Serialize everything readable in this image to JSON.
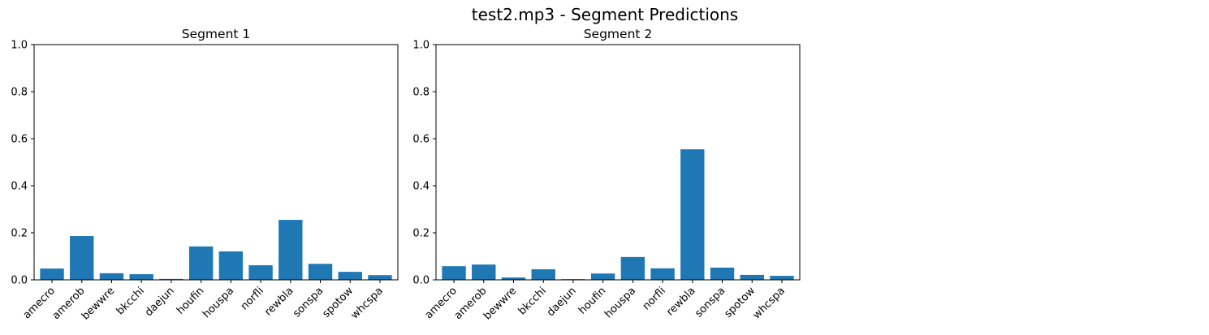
{
  "figure": {
    "title": "test2.mp3 - Segment Predictions",
    "bar_color": "#1f77b4"
  },
  "chart_data": [
    {
      "type": "bar",
      "title": "Segment 1",
      "xlabel": "",
      "ylabel": "",
      "categories": [
        "amecro",
        "amerob",
        "bewwre",
        "bkcchi",
        "daejun",
        "houfin",
        "houspa",
        "norfli",
        "rewbla",
        "sonspa",
        "spotow",
        "whcspa"
      ],
      "values": [
        0.048,
        0.186,
        0.028,
        0.024,
        0.004,
        0.142,
        0.121,
        0.062,
        0.255,
        0.068,
        0.034,
        0.02
      ],
      "ylim": [
        0,
        1.0
      ],
      "yticks": [
        "0.0",
        "0.2",
        "0.4",
        "0.6",
        "0.8",
        "1.0"
      ],
      "grid": false,
      "legend": "none"
    },
    {
      "type": "bar",
      "title": "Segment 2",
      "xlabel": "",
      "ylabel": "",
      "categories": [
        "amecro",
        "amerob",
        "bewwre",
        "bkcchi",
        "daejun",
        "houfin",
        "houspa",
        "norfli",
        "rewbla",
        "sonspa",
        "spotow",
        "whcspa"
      ],
      "values": [
        0.058,
        0.065,
        0.01,
        0.045,
        0.003,
        0.027,
        0.097,
        0.049,
        0.555,
        0.052,
        0.021,
        0.017
      ],
      "ylim": [
        0,
        1.0
      ],
      "yticks": [
        "0.0",
        "0.2",
        "0.4",
        "0.6",
        "0.8",
        "1.0"
      ],
      "grid": false,
      "legend": "none"
    }
  ]
}
